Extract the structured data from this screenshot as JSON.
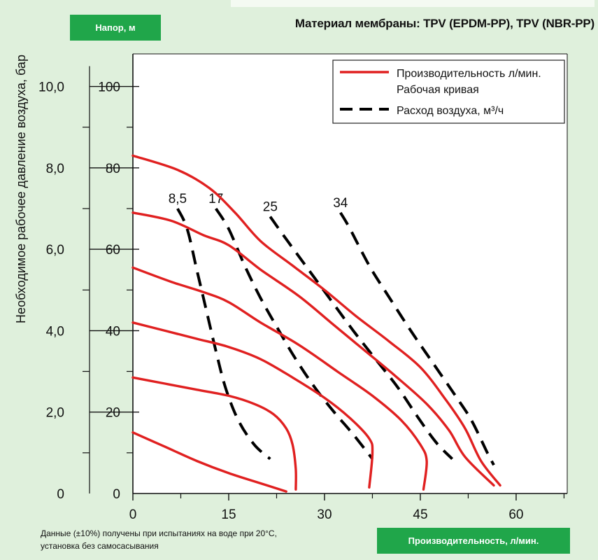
{
  "header": {
    "head_badge": "Напор, м",
    "title": "Материал мембраны: TPV (EPDM-PP), TPV (NBR-PP)"
  },
  "footer": {
    "note_line1": "Данные (±10%) получены при испытаниях на воде при 20°С,",
    "note_line2": "установка без самосасывания",
    "flow_badge": "Производительность, л/мин."
  },
  "colors": {
    "badge": "#20a64a",
    "curve": "#e02020",
    "air": "#000000",
    "background": "#dff0dc"
  },
  "chart_data": {
    "type": "line",
    "xlabel": "Производительность, л/мин.",
    "ylabel": "Напор, м",
    "y2label": "Необходимое рабочее давление воздуха, бар",
    "xlim": [
      0,
      68
    ],
    "ylim": [
      0,
      108
    ],
    "x_ticks": [
      0,
      15,
      30,
      45,
      60
    ],
    "y_ticks": [
      0,
      20,
      40,
      60,
      80,
      100
    ],
    "y2_ticks": [
      "0",
      "2,0",
      "4,0",
      "6,0",
      "8,0",
      "10,0"
    ],
    "legend": {
      "position": "top-right",
      "entries": [
        {
          "style": "solid",
          "label_line1": "Производительность л/мин.",
          "label_line2": "Рабочая кривая"
        },
        {
          "style": "dashed",
          "label": "Расход воздуха, м³/ч"
        }
      ]
    },
    "performance_curves": [
      {
        "points": [
          [
            0,
            83
          ],
          [
            7,
            79.5
          ],
          [
            12,
            75
          ],
          [
            16,
            69
          ],
          [
            20,
            62
          ],
          [
            25,
            56
          ],
          [
            30,
            50
          ],
          [
            35,
            43.5
          ],
          [
            40,
            37.5
          ],
          [
            45,
            31
          ],
          [
            49,
            23
          ],
          [
            52,
            16
          ],
          [
            54.5,
            8
          ],
          [
            57.5,
            2
          ]
        ]
      },
      {
        "points": [
          [
            0,
            69
          ],
          [
            6,
            67
          ],
          [
            11,
            63.5
          ],
          [
            15,
            61
          ],
          [
            20,
            55
          ],
          [
            26,
            48.5
          ],
          [
            31,
            42
          ],
          [
            36,
            35.5
          ],
          [
            41,
            29
          ],
          [
            46,
            22
          ],
          [
            49.5,
            15.5
          ],
          [
            52,
            9
          ],
          [
            56.5,
            2
          ]
        ]
      },
      {
        "points": [
          [
            0,
            55.5
          ],
          [
            6,
            52
          ],
          [
            11,
            49.5
          ],
          [
            15,
            47
          ],
          [
            20,
            42
          ],
          [
            26,
            36.5
          ],
          [
            32,
            30
          ],
          [
            37.5,
            24
          ],
          [
            42,
            18
          ],
          [
            45,
            12
          ],
          [
            46,
            8
          ],
          [
            45.5,
            1
          ]
        ]
      },
      {
        "points": [
          [
            0,
            42
          ],
          [
            5,
            40
          ],
          [
            10,
            38
          ],
          [
            15,
            36
          ],
          [
            20,
            33
          ],
          [
            25,
            28.5
          ],
          [
            30,
            23.5
          ],
          [
            34,
            18.5
          ],
          [
            37,
            13.5
          ],
          [
            37.5,
            10
          ],
          [
            37,
            1.5
          ]
        ]
      },
      {
        "points": [
          [
            0,
            28.5
          ],
          [
            5,
            27
          ],
          [
            10,
            25.5
          ],
          [
            15,
            24
          ],
          [
            19,
            22
          ],
          [
            22,
            19.5
          ],
          [
            24,
            16
          ],
          [
            25,
            12
          ],
          [
            25.5,
            6
          ],
          [
            25.5,
            1
          ]
        ]
      },
      {
        "points": [
          [
            0,
            15
          ],
          [
            5,
            11.5
          ],
          [
            10,
            8
          ],
          [
            15,
            5
          ],
          [
            20,
            2.5
          ],
          [
            24,
            0.5
          ]
        ]
      }
    ],
    "air_consumption": [
      {
        "label": "8,5",
        "points": [
          [
            7,
            70
          ],
          [
            8.5,
            65
          ],
          [
            10,
            55
          ],
          [
            11.5,
            45
          ],
          [
            13,
            35
          ],
          [
            14.5,
            26
          ],
          [
            16.5,
            18
          ],
          [
            19,
            12
          ],
          [
            21.5,
            8.5
          ]
        ]
      },
      {
        "label": "17",
        "points": [
          [
            13,
            70
          ],
          [
            15,
            65
          ],
          [
            17.5,
            56
          ],
          [
            20,
            48
          ],
          [
            22.5,
            41
          ],
          [
            25.5,
            33
          ],
          [
            28.5,
            26
          ],
          [
            31.5,
            20
          ],
          [
            34.5,
            14.5
          ],
          [
            37.5,
            8.5
          ]
        ]
      },
      {
        "label": "25",
        "points": [
          [
            21.5,
            68
          ],
          [
            24,
            62.5
          ],
          [
            27.5,
            55
          ],
          [
            31,
            47.5
          ],
          [
            34.5,
            40
          ],
          [
            38,
            33
          ],
          [
            41.5,
            26
          ],
          [
            44.5,
            19
          ],
          [
            47.5,
            12.5
          ],
          [
            50,
            8.5
          ]
        ]
      },
      {
        "label": "34",
        "points": [
          [
            32.5,
            69
          ],
          [
            34,
            65
          ],
          [
            37,
            56
          ],
          [
            40,
            48.5
          ],
          [
            43.5,
            40
          ],
          [
            47,
            32
          ],
          [
            50.5,
            24
          ],
          [
            53,
            18
          ],
          [
            55.5,
            10
          ],
          [
            56.5,
            7
          ]
        ]
      }
    ]
  }
}
